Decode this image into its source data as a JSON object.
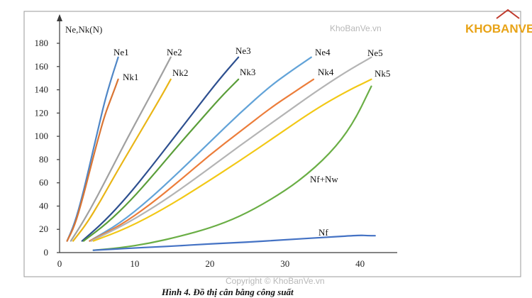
{
  "chart_data": {
    "type": "line",
    "title": "",
    "ylabel": "Ne,Nk(N)",
    "xlabel": "",
    "xlim": [
      0,
      44
    ],
    "ylim": [
      0,
      180
    ],
    "xticks": [
      0,
      10,
      20,
      30,
      40
    ],
    "yticks": [
      0,
      20,
      40,
      60,
      80,
      100,
      120,
      140,
      160,
      180
    ],
    "grid": false,
    "series": [
      {
        "name": "Ne1",
        "color": "#4f86c6",
        "points": [
          [
            1,
            10
          ],
          [
            2,
            25
          ],
          [
            3,
            48
          ],
          [
            4,
            75
          ],
          [
            5,
            103
          ],
          [
            6,
            130
          ],
          [
            7,
            152
          ],
          [
            7.8,
            168
          ]
        ]
      },
      {
        "name": "Nk1",
        "color": "#d97534",
        "points": [
          [
            1,
            10
          ],
          [
            2,
            23
          ],
          [
            3,
            45
          ],
          [
            4,
            70
          ],
          [
            5,
            95
          ],
          [
            6,
            118
          ],
          [
            7,
            135
          ],
          [
            7.8,
            149
          ]
        ]
      },
      {
        "name": "Ne2",
        "color": "#a0a0a0",
        "points": [
          [
            1.5,
            10
          ],
          [
            3,
            25
          ],
          [
            5,
            48
          ],
          [
            7,
            73
          ],
          [
            9,
            98
          ],
          [
            11,
            122
          ],
          [
            13,
            146
          ],
          [
            14.8,
            168
          ]
        ]
      },
      {
        "name": "Nk2",
        "color": "#e9b516",
        "points": [
          [
            1.8,
            10
          ],
          [
            3.5,
            24
          ],
          [
            5.5,
            45
          ],
          [
            7.5,
            68
          ],
          [
            9.5,
            90
          ],
          [
            11.5,
            112
          ],
          [
            13.5,
            134
          ],
          [
            14.8,
            149
          ]
        ]
      },
      {
        "name": "Ne3",
        "color": "#2d4f8f",
        "points": [
          [
            3,
            10
          ],
          [
            6,
            27
          ],
          [
            9,
            48
          ],
          [
            12,
            72
          ],
          [
            15,
            97
          ],
          [
            18,
            122
          ],
          [
            21,
            147
          ],
          [
            23.8,
            168
          ]
        ]
      },
      {
        "name": "Nk3",
        "color": "#5b9e3a",
        "points": [
          [
            3.2,
            10
          ],
          [
            6.3,
            25
          ],
          [
            9.5,
            45
          ],
          [
            12.5,
            67
          ],
          [
            15.5,
            90
          ],
          [
            18.5,
            112
          ],
          [
            21.5,
            134
          ],
          [
            23.8,
            149
          ]
        ]
      },
      {
        "name": "Ne4",
        "color": "#62a3d8",
        "points": [
          [
            4,
            10
          ],
          [
            8,
            25
          ],
          [
            12,
            46
          ],
          [
            16,
            70
          ],
          [
            20,
            95
          ],
          [
            24,
            120
          ],
          [
            28,
            143
          ],
          [
            31,
            157
          ],
          [
            33.5,
            168
          ]
        ]
      },
      {
        "name": "Nk4",
        "color": "#ec7d3a",
        "points": [
          [
            4,
            10
          ],
          [
            8,
            23
          ],
          [
            12,
            41
          ],
          [
            16,
            62
          ],
          [
            20,
            84
          ],
          [
            24,
            104
          ],
          [
            28,
            124
          ],
          [
            31,
            137
          ],
          [
            33.8,
            149
          ]
        ]
      },
      {
        "name": "Ne5",
        "color": "#b4b4b4",
        "points": [
          [
            4.2,
            10
          ],
          [
            9,
            25
          ],
          [
            14,
            45
          ],
          [
            19,
            68
          ],
          [
            24,
            92
          ],
          [
            29,
            115
          ],
          [
            34,
            138
          ],
          [
            38,
            155
          ],
          [
            41.5,
            168
          ]
        ]
      },
      {
        "name": "Nk5",
        "color": "#f2c816",
        "points": [
          [
            4.5,
            10
          ],
          [
            9,
            21
          ],
          [
            14,
            38
          ],
          [
            19,
            58
          ],
          [
            24,
            79
          ],
          [
            29,
            101
          ],
          [
            34,
            123
          ],
          [
            38,
            138
          ],
          [
            41.5,
            149
          ]
        ]
      },
      {
        "name": "Nf+Nw",
        "color": "#6aae45",
        "points": [
          [
            4.5,
            2
          ],
          [
            8,
            4
          ],
          [
            12,
            8
          ],
          [
            16,
            14
          ],
          [
            20,
            21
          ],
          [
            24,
            31
          ],
          [
            28,
            45
          ],
          [
            32,
            62
          ],
          [
            36,
            85
          ],
          [
            39,
            110
          ],
          [
            41.5,
            143
          ]
        ]
      },
      {
        "name": "Nf",
        "color": "#4472c4",
        "points": [
          [
            4.5,
            2
          ],
          [
            10,
            4
          ],
          [
            15,
            5.5
          ],
          [
            20,
            7.5
          ],
          [
            25,
            9
          ],
          [
            30,
            11
          ],
          [
            35,
            13
          ],
          [
            40,
            15
          ],
          [
            41,
            14.5
          ],
          [
            42,
            14.5
          ]
        ]
      }
    ]
  },
  "series_labels": {
    "Ne1": "Ne1",
    "Nk1": "Nk1",
    "Ne2": "Ne2",
    "Nk2": "Nk2",
    "Ne3": "Ne3",
    "Nk3": "Nk3",
    "Ne4": "Ne4",
    "Nk4": "Nk4",
    "Ne5": "Ne5",
    "Nk5": "Nk5",
    "NfNw": "Nf+Nw",
    "Nf": "Nf"
  },
  "caption": "Hình 4. Đồ thị cân bằng công suất",
  "watermark": "KhoBanVe.vn",
  "footer_copyright": "Copyright © KhoBanVe.vn",
  "brand": {
    "name": "KHOBANVE",
    "color_primary": "#e8a317",
    "color_secondary": "#3a7a3a"
  }
}
